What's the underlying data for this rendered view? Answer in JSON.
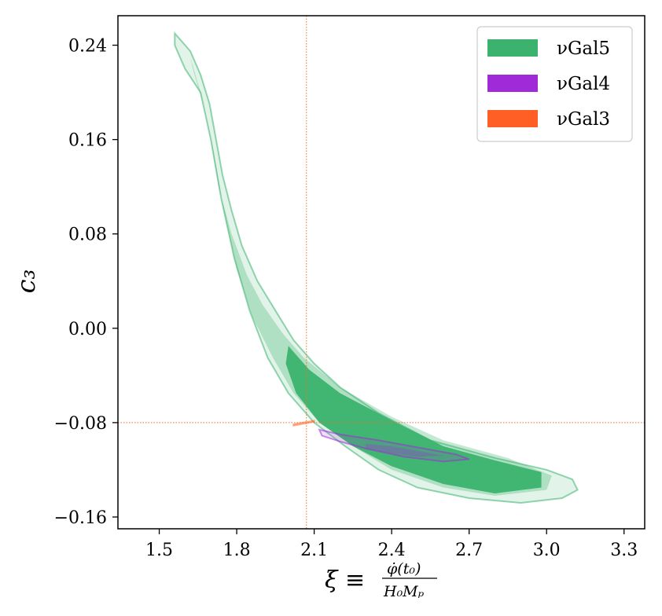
{
  "chart_data": {
    "type": "contour",
    "title": "",
    "xlabel_main": "ξ ≡",
    "xlabel_num": "φ̇(t₀)",
    "xlabel_den": "H₀Mₚ",
    "ylabel": "c₃",
    "xlim": [
      1.34,
      3.38
    ],
    "ylim": [
      -0.17,
      0.265
    ],
    "xticks": [
      1.5,
      1.8,
      2.1,
      2.4,
      2.7,
      3.0,
      3.3
    ],
    "xtick_labels": [
      "1.5",
      "1.8",
      "2.1",
      "2.4",
      "2.7",
      "3.0",
      "3.3"
    ],
    "yticks": [
      0.24,
      0.16,
      0.08,
      0.0,
      -0.08,
      -0.16
    ],
    "ytick_labels": [
      "0.24",
      "0.16",
      "0.08",
      "0.00",
      "−0.08",
      "−0.16"
    ],
    "reference_lines": {
      "x": 2.07,
      "y": -0.08,
      "color": "#ff6a2a"
    },
    "series": [
      {
        "name": "νGal5",
        "color": "#3bb36e",
        "outer_95": [
          [
            1.56,
            0.25
          ],
          [
            1.62,
            0.235
          ],
          [
            1.66,
            0.215
          ],
          [
            1.695,
            0.19
          ],
          [
            1.72,
            0.16
          ],
          [
            1.745,
            0.13
          ],
          [
            1.78,
            0.1
          ],
          [
            1.82,
            0.07
          ],
          [
            1.88,
            0.04
          ],
          [
            1.95,
            0.015
          ],
          [
            2.02,
            -0.01
          ],
          [
            2.1,
            -0.03
          ],
          [
            2.2,
            -0.05
          ],
          [
            2.35,
            -0.072
          ],
          [
            2.55,
            -0.095
          ],
          [
            2.8,
            -0.11
          ],
          [
            3.0,
            -0.12
          ],
          [
            3.1,
            -0.128
          ],
          [
            3.12,
            -0.137
          ],
          [
            3.06,
            -0.144
          ],
          [
            2.9,
            -0.148
          ],
          [
            2.7,
            -0.144
          ],
          [
            2.5,
            -0.135
          ],
          [
            2.35,
            -0.12
          ],
          [
            2.22,
            -0.1
          ],
          [
            2.1,
            -0.08
          ],
          [
            2.0,
            -0.055
          ],
          [
            1.92,
            -0.025
          ],
          [
            1.85,
            0.015
          ],
          [
            1.79,
            0.06
          ],
          [
            1.74,
            0.11
          ],
          [
            1.7,
            0.16
          ],
          [
            1.66,
            0.2
          ],
          [
            1.6,
            0.22
          ],
          [
            1.56,
            0.24
          ]
        ],
        "inner_68": [
          [
            1.62,
            0.23
          ],
          [
            1.66,
            0.2
          ],
          [
            1.7,
            0.16
          ],
          [
            1.73,
            0.12
          ],
          [
            1.78,
            0.08
          ],
          [
            1.84,
            0.045
          ],
          [
            1.9,
            0.02
          ],
          [
            1.98,
            -0.005
          ],
          [
            2.06,
            -0.025
          ],
          [
            2.2,
            -0.05
          ],
          [
            2.4,
            -0.075
          ],
          [
            2.6,
            -0.095
          ],
          [
            2.85,
            -0.11
          ],
          [
            3.02,
            -0.125
          ],
          [
            3.0,
            -0.137
          ],
          [
            2.8,
            -0.142
          ],
          [
            2.6,
            -0.135
          ],
          [
            2.4,
            -0.12
          ],
          [
            2.25,
            -0.1
          ],
          [
            2.12,
            -0.08
          ],
          [
            2.02,
            -0.055
          ],
          [
            1.94,
            -0.025
          ],
          [
            1.86,
            0.01
          ],
          [
            1.8,
            0.05
          ],
          [
            1.75,
            0.1
          ],
          [
            1.71,
            0.15
          ],
          [
            1.67,
            0.19
          ],
          [
            1.63,
            0.22
          ]
        ],
        "core": [
          [
            2.0,
            -0.015
          ],
          [
            2.08,
            -0.035
          ],
          [
            2.2,
            -0.055
          ],
          [
            2.4,
            -0.078
          ],
          [
            2.6,
            -0.1
          ],
          [
            2.8,
            -0.112
          ],
          [
            2.98,
            -0.122
          ],
          [
            2.98,
            -0.135
          ],
          [
            2.8,
            -0.14
          ],
          [
            2.6,
            -0.132
          ],
          [
            2.4,
            -0.117
          ],
          [
            2.25,
            -0.1
          ],
          [
            2.12,
            -0.08
          ],
          [
            2.03,
            -0.055
          ],
          [
            1.99,
            -0.03
          ]
        ]
      },
      {
        "name": "νGal4",
        "color": "#a12ad8",
        "outer_95": [
          [
            2.12,
            -0.086
          ],
          [
            2.2,
            -0.09
          ],
          [
            2.35,
            -0.095
          ],
          [
            2.5,
            -0.101
          ],
          [
            2.65,
            -0.107
          ],
          [
            2.7,
            -0.111
          ],
          [
            2.6,
            -0.113
          ],
          [
            2.45,
            -0.109
          ],
          [
            2.3,
            -0.102
          ],
          [
            2.2,
            -0.096
          ],
          [
            2.13,
            -0.091
          ]
        ],
        "inner_68": [
          [
            2.3,
            -0.098
          ],
          [
            2.4,
            -0.1
          ],
          [
            2.5,
            -0.104
          ],
          [
            2.6,
            -0.108
          ],
          [
            2.5,
            -0.109
          ],
          [
            2.4,
            -0.106
          ],
          [
            2.3,
            -0.102
          ]
        ]
      },
      {
        "name": "νGal3",
        "color": "#ff5e24",
        "outer_95": [
          [
            2.02,
            -0.0825
          ],
          [
            2.06,
            -0.0808
          ],
          [
            2.1,
            -0.0792
          ],
          [
            2.1,
            -0.0785
          ],
          [
            2.06,
            -0.0798
          ],
          [
            2.02,
            -0.0815
          ]
        ]
      }
    ],
    "legend": {
      "position": "upper-right",
      "entries": [
        {
          "label": "νGal5",
          "color": "#3bb36e"
        },
        {
          "label": "νGal4",
          "color": "#a12ad8"
        },
        {
          "label": "νGal3",
          "color": "#ff5e24"
        }
      ]
    }
  }
}
